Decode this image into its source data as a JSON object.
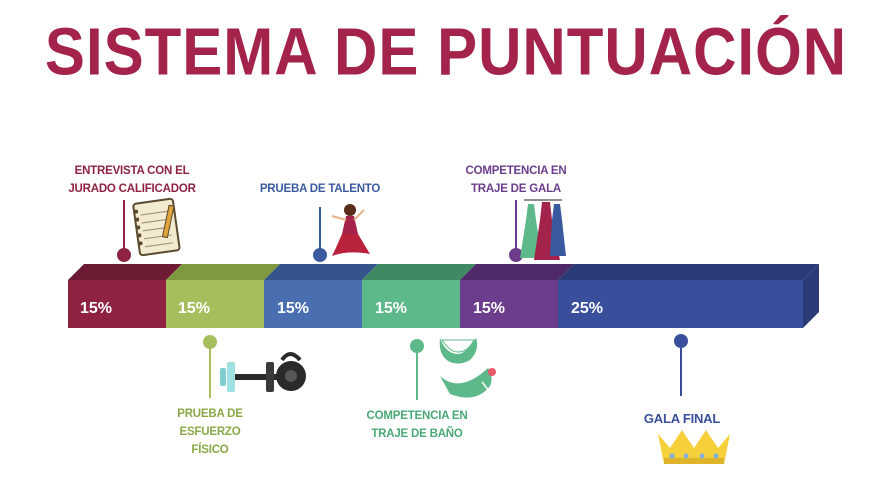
{
  "title": "SISTEMA DE PUNTUACIÓN",
  "segments": [
    {
      "percent": "15%",
      "color": "#8e2240",
      "top_color": "#6d1a33"
    },
    {
      "percent": "15%",
      "color": "#a6bf5c",
      "top_color": "#7f9a3e"
    },
    {
      "percent": "15%",
      "color": "#4a6fb0",
      "top_color": "#36548c"
    },
    {
      "percent": "15%",
      "color": "#5db88a",
      "top_color": "#3f8a63"
    },
    {
      "percent": "15%",
      "color": "#6b3d8c",
      "top_color": "#4f2a6b"
    },
    {
      "percent": "25%",
      "color": "#3a4f9c",
      "top_color": "#2a3b78"
    }
  ],
  "labels": {
    "entrevista": [
      "ENTREVISTA CON EL",
      "JURADO CALIFICADOR"
    ],
    "talento": [
      "PRUEBA DE TALENTO"
    ],
    "gala": [
      "COMPETENCIA EN",
      "TRAJE DE GALA"
    ],
    "esfuerzo": [
      "PRUEBA DE",
      "ESFUERZO",
      "FÍSICO"
    ],
    "bano": [
      "COMPETENCIA EN",
      "TRAJE DE BAÑO"
    ],
    "final": [
      "GALA FINAL"
    ]
  },
  "label_colors": {
    "entrevista": "#8e2240",
    "talento": "#3a5aa0",
    "gala": "#6b3d8c",
    "esfuerzo": "#8aa846",
    "bano": "#4aa877",
    "final": "#3a4f9c"
  },
  "icons": {
    "entrevista": "notepad-pencil-icon",
    "talento": "dancer-icon",
    "gala": "gowns-icon",
    "esfuerzo": "dumbbell-kettlebell-icon",
    "bano": "swimsuit-icon",
    "final": "crown-icon"
  }
}
